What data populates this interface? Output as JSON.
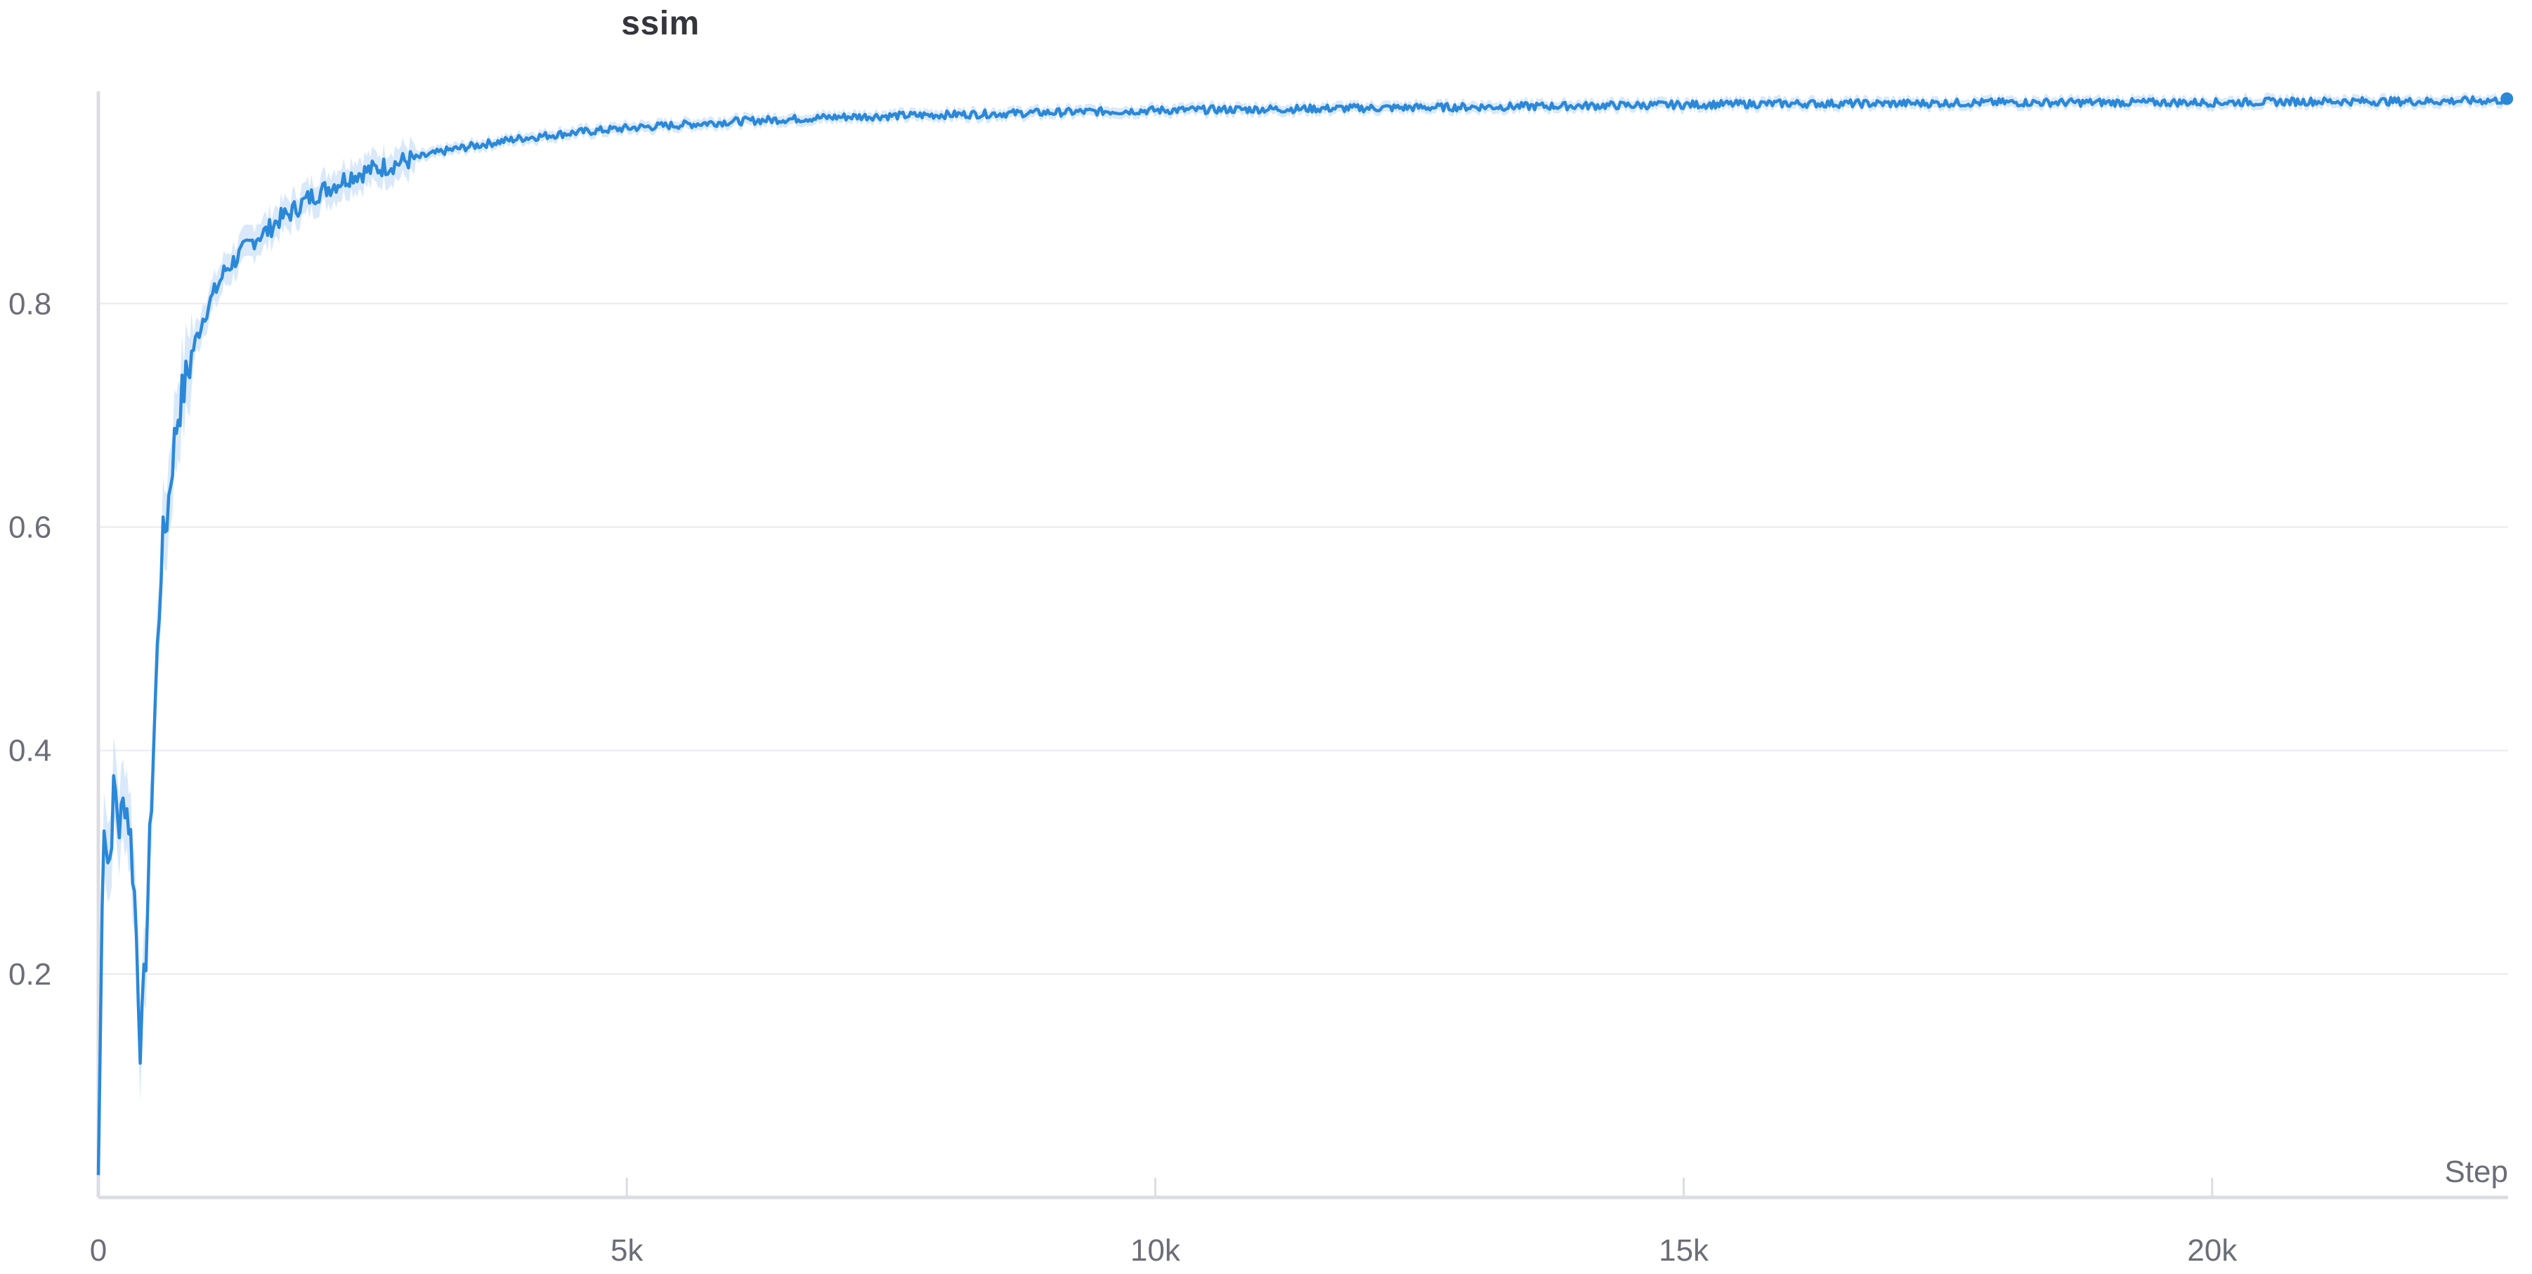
{
  "chart_data": {
    "type": "line",
    "title": "ssim",
    "xlabel": "Step",
    "ylabel": "",
    "xlim": [
      0,
      22800
    ],
    "ylim": [
      0,
      0.99
    ],
    "x_ticks": [
      0,
      5000,
      10000,
      15000,
      20000
    ],
    "x_tick_labels": [
      "0",
      "5k",
      "10k",
      "15k",
      "20k"
    ],
    "y_ticks": [
      0.2,
      0.4,
      0.6,
      0.8
    ],
    "y_tick_labels": [
      "0.2",
      "0.4",
      "0.6",
      "0.8"
    ],
    "grid": true,
    "legend": "none",
    "colors": {
      "line": "#2b88d8",
      "band": "#cfe4f7",
      "grid": "#e9eaee",
      "axis": "#dcdde2",
      "tick_text": "#6b6e78"
    },
    "series": [
      {
        "x": [
          0,
          50,
          100,
          150,
          200,
          250,
          300,
          350,
          400,
          450,
          500,
          550,
          600,
          650,
          700,
          750,
          800,
          850,
          900,
          1000,
          1100,
          1200,
          1300,
          1400,
          1500,
          1600,
          1700,
          1800,
          2000,
          2200,
          2400,
          2600,
          2800,
          3000,
          3300,
          3600,
          4000,
          4500,
          5000,
          5500,
          6000,
          6500,
          7000,
          7500,
          8000,
          8500,
          9000,
          10000,
          11000,
          12000,
          13000,
          14000,
          15000,
          16000,
          17000,
          18000,
          19000,
          20000,
          21000,
          22000,
          22800
        ],
        "values": [
          0.02,
          0.35,
          0.29,
          0.37,
          0.33,
          0.36,
          0.33,
          0.26,
          0.13,
          0.22,
          0.35,
          0.47,
          0.58,
          0.61,
          0.66,
          0.7,
          0.72,
          0.74,
          0.76,
          0.79,
          0.81,
          0.83,
          0.84,
          0.85,
          0.86,
          0.865,
          0.875,
          0.88,
          0.895,
          0.905,
          0.915,
          0.92,
          0.925,
          0.93,
          0.937,
          0.942,
          0.948,
          0.953,
          0.957,
          0.96,
          0.963,
          0.965,
          0.967,
          0.968,
          0.969,
          0.97,
          0.971,
          0.973,
          0.974,
          0.975,
          0.976,
          0.977,
          0.978,
          0.979,
          0.979,
          0.98,
          0.98,
          0.98,
          0.981,
          0.981,
          0.982
        ]
      }
    ]
  }
}
